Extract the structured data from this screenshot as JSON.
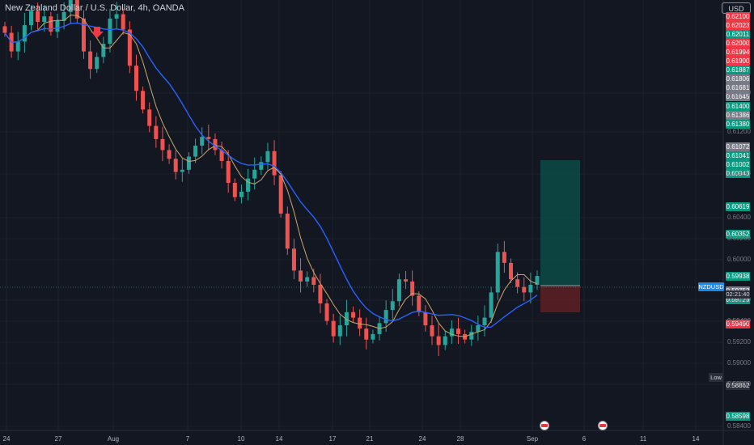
{
  "header": {
    "title": "New Zealand Dollar / U.S. Dollar, 4h, OANDA",
    "currency": "USD"
  },
  "price_axis": {
    "tags": [
      {
        "text": "0.62100",
        "color": "#f23645"
      },
      {
        "text": "0.62023",
        "color": "#f23645"
      },
      {
        "text": "0.62011",
        "color": "#089981"
      },
      {
        "text": "0.62000",
        "color": "#f23645"
      },
      {
        "text": "0.61994",
        "color": "#f23645"
      },
      {
        "text": "0.61900",
        "color": "#f23645"
      },
      {
        "text": "0.61887",
        "color": "#089981"
      },
      {
        "text": "0.61806",
        "color": "#787b86"
      },
      {
        "text": "0.61681",
        "color": "#787b86"
      },
      {
        "text": "0.61645",
        "color": "#787b86"
      },
      {
        "text": "0.61400",
        "color": "#089981"
      },
      {
        "text": "0.61386",
        "color": "#787b86"
      },
      {
        "text": "0.61380",
        "color": "#089981"
      },
      {
        "text": "0.61072",
        "color": "#787b86"
      },
      {
        "text": "0.61041",
        "color": "#089981"
      },
      {
        "text": "0.61002",
        "color": "#089981"
      },
      {
        "text": "0.60943",
        "color": "#089981"
      },
      {
        "text": "0.60619",
        "color": "#089981"
      },
      {
        "text": "0.60352",
        "color": "#089981"
      },
      {
        "text": "0.59938",
        "color": "#089981"
      },
      {
        "text": "0.59752",
        "color": "#787b86"
      },
      {
        "text": "0.59726",
        "color": "#089981"
      },
      {
        "text": "0.59490",
        "color": "#f23645"
      },
      {
        "text": "0.58862",
        "color": "#2a2e39"
      },
      {
        "text": "0.58598",
        "color": "#089981"
      }
    ],
    "plain_prices": [
      "0.61800",
      "0.61200",
      "0.60800",
      "0.60400",
      "0.60200",
      "0.60000",
      "0.59600",
      "0.59400",
      "0.59200",
      "0.59000",
      "0.58800",
      "0.58400"
    ],
    "symbol_tag": "NZDUSD",
    "countdown": "02:21:40",
    "low_label": "Low"
  },
  "time_axis": {
    "labels": [
      "24",
      "27",
      "Aug",
      "7",
      "10",
      "14",
      "17",
      "21",
      "24",
      "28",
      "Sep",
      "6",
      "11",
      "14"
    ]
  },
  "chart_data": {
    "type": "candlestick",
    "symbol": "NZDUSD",
    "interval": "4h",
    "last_price": 0.59726,
    "low": 0.58862,
    "price_range": [
      0.5835,
      0.6222
    ],
    "position_tool": {
      "entry": 0.59752,
      "target": 0.60943,
      "stop": 0.5949
    },
    "colors": {
      "up": "#26a69a",
      "down": "#ef5350",
      "ma_fast": "#c9a86b",
      "ma_slow": "#2962ff"
    },
    "closes": [
      0.6195,
      0.6178,
      0.6187,
      0.6202,
      0.6215,
      0.6205,
      0.621,
      0.6196,
      0.6206,
      0.6214,
      0.623,
      0.6208,
      0.6178,
      0.6162,
      0.6173,
      0.6185,
      0.6208,
      0.6212,
      0.6198,
      0.6165,
      0.6142,
      0.6125,
      0.611,
      0.6098,
      0.6088,
      0.608,
      0.6068,
      0.607,
      0.6082,
      0.6092,
      0.61,
      0.6098,
      0.6088,
      0.6078,
      0.6058,
      0.6045,
      0.605,
      0.6062,
      0.607,
      0.6077,
      0.6087,
      0.6065,
      0.603,
      0.5998,
      0.5978,
      0.5968,
      0.5972,
      0.5965,
      0.5948,
      0.5932,
      0.5918,
      0.5928,
      0.594,
      0.5935,
      0.5925,
      0.5915,
      0.592,
      0.593,
      0.5942,
      0.595,
      0.597,
      0.5968,
      0.5955,
      0.594,
      0.5928,
      0.5918,
      0.591,
      0.5918,
      0.5925,
      0.592,
      0.5915,
      0.5922,
      0.5928,
      0.5935,
      0.5958,
      0.5995,
      0.5985,
      0.597,
      0.5963,
      0.5958,
      0.5965,
      0.5973
    ]
  }
}
